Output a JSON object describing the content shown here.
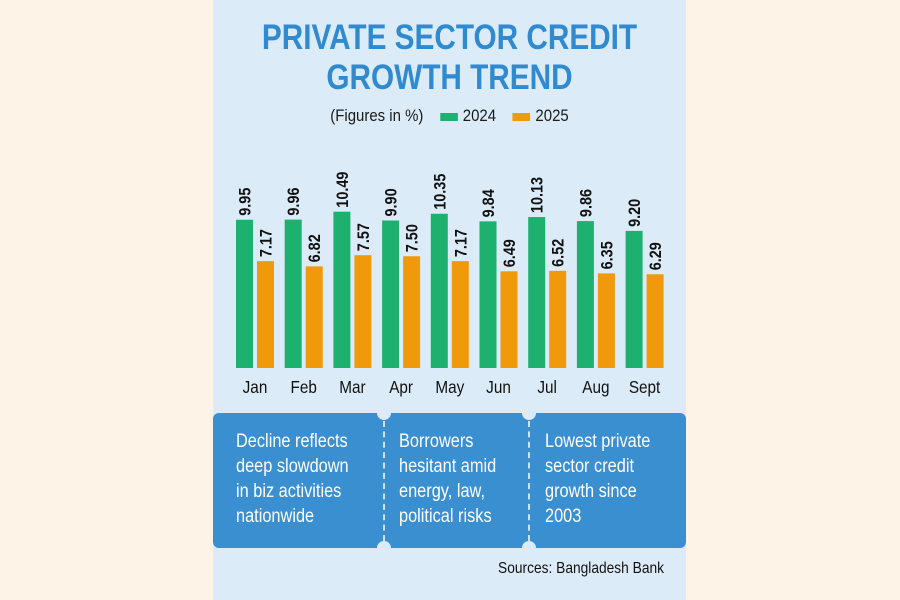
{
  "chart_data": {
    "type": "bar",
    "title": "PRIVATE SECTOR CREDIT GROWTH TREND",
    "title_lines": [
      "PRIVATE SECTOR CREDIT",
      "GROWTH TREND"
    ],
    "subtitle": "(Figures in %)",
    "categories": [
      "Jan",
      "Feb",
      "Mar",
      "Apr",
      "May",
      "Jun",
      "Jul",
      "Aug",
      "Sept"
    ],
    "series": [
      {
        "name": "2024",
        "color": "#1db06e",
        "values": [
          9.95,
          9.96,
          10.49,
          9.9,
          10.35,
          9.84,
          10.13,
          9.86,
          9.2
        ],
        "labels": [
          "9.95",
          "9.96",
          "10.49",
          "9.90",
          "10.35",
          "9.84",
          "10.13",
          "9.86",
          "9.20"
        ]
      },
      {
        "name": "2025",
        "color": "#f09a0b",
        "values": [
          7.17,
          6.82,
          7.57,
          7.5,
          7.17,
          6.49,
          6.52,
          6.35,
          6.29
        ],
        "labels": [
          "7.17",
          "6.82",
          "7.57",
          "7.50",
          "7.17",
          "6.49",
          "6.52",
          "6.35",
          "6.29"
        ]
      }
    ],
    "ylim": [
      0,
      11
    ],
    "legend": "top",
    "grid": false
  },
  "notes": [
    "Decline reflects\ndeep slowdown\nin biz activities\nnationwide",
    "Borrowers\nhesitant amid\nenergy, law,\npolitical risks",
    "Lowest private\nsector credit\ngrowth since\n2003"
  ],
  "source": "Sources: Bangladesh Bank"
}
